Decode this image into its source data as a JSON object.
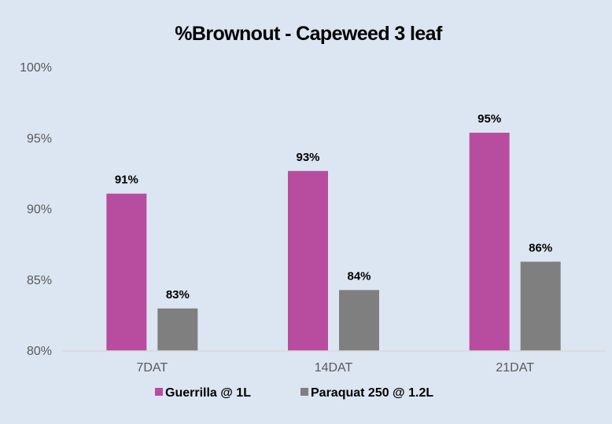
{
  "chart_data": {
    "type": "bar",
    "title": "%Brownout - Capeweed 3 leaf",
    "categories": [
      "7DAT",
      "14DAT",
      "21DAT"
    ],
    "series": [
      {
        "name": "Guerrilla @ 1L",
        "values": [
          91.1,
          92.7,
          95.4
        ],
        "labels": [
          "91%",
          "93%",
          "95%"
        ]
      },
      {
        "name": "Paraquat 250 @ 1.2L",
        "values": [
          83.0,
          84.3,
          86.3
        ],
        "labels": [
          "83%",
          "84%",
          "86%"
        ]
      }
    ],
    "ylim": [
      80,
      100
    ],
    "yticks": [
      80,
      85,
      90,
      95,
      100
    ],
    "ytick_labels": [
      "80%",
      "85%",
      "90%",
      "95%",
      "100%"
    ],
    "xlabel": "",
    "ylabel": "",
    "grid": false,
    "legend": "bottom",
    "colors": {
      "background": "#dce6f2",
      "series": [
        "#b84c9e",
        "#7f7f7f"
      ],
      "axis_line": "#d9d9d9"
    }
  }
}
